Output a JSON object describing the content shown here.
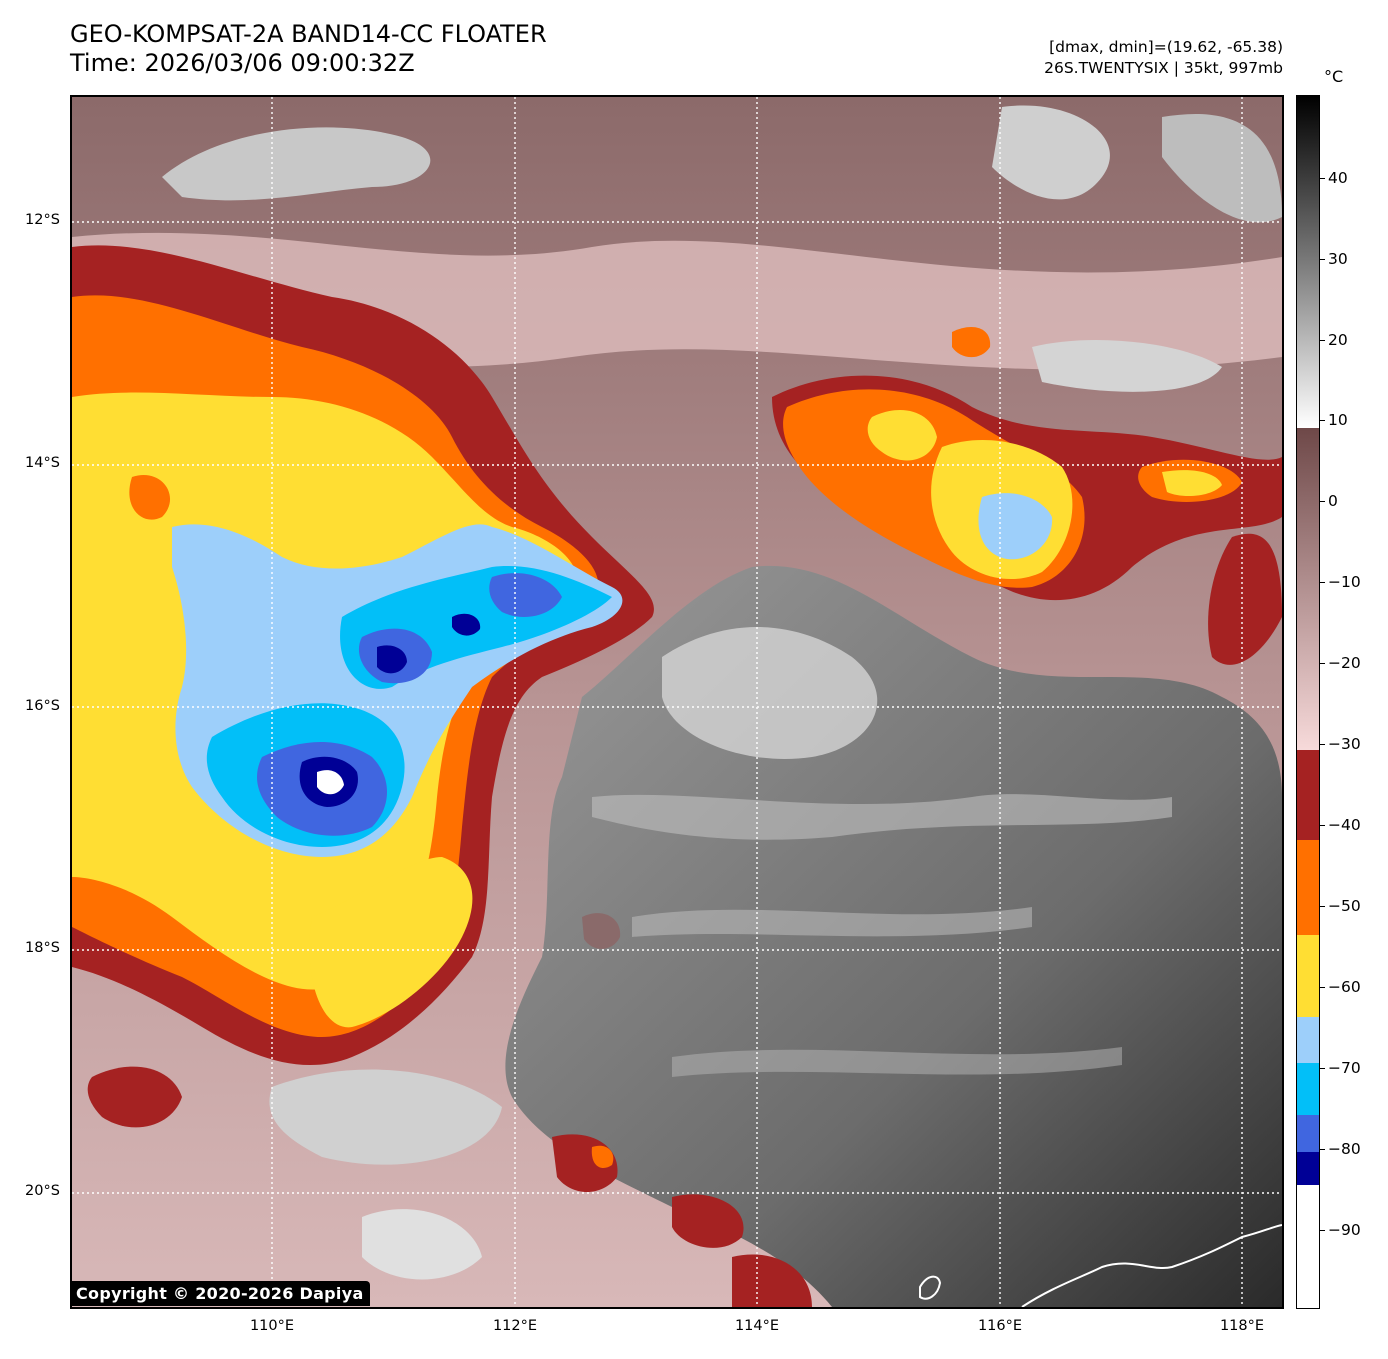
{
  "header": {
    "title_line1": "GEO-KOMPSAT-2A BAND14-CC FLOATER",
    "title_line2": "Time: 2026/03/06 09:00:32Z",
    "range_line": "[dmax, dmin]=(19.62, -65.38)",
    "storm_line": "26S.TWENTYSIX | 35kt, 997mb"
  },
  "copyright": "Copyright © 2020-2026 Dapiya",
  "axes": {
    "lat_labels": [
      "12°S",
      "14°S",
      "16°S",
      "18°S",
      "20°S"
    ],
    "lon_labels": [
      "110°E",
      "112°E",
      "114°E",
      "116°E",
      "118°E"
    ]
  },
  "colorbar": {
    "unit": "°C",
    "tick_labels": [
      "40",
      "30",
      "20",
      "10",
      "0",
      "−10",
      "−20",
      "−30",
      "−40",
      "−50",
      "−60",
      "−70",
      "−80",
      "−90"
    ],
    "colors": {
      "black": "#000000",
      "gray_mid": "#7a7a7a",
      "white": "#ffffff",
      "brown_dark": "#6e4848",
      "pink_light": "#f7dada",
      "dark_red": "#a52222",
      "orange": "#ff7000",
      "yellow": "#ffde33",
      "light_blue": "#9dcffa",
      "cyan": "#02bff8",
      "royal_blue": "#4066e0",
      "navy": "#000096"
    }
  }
}
